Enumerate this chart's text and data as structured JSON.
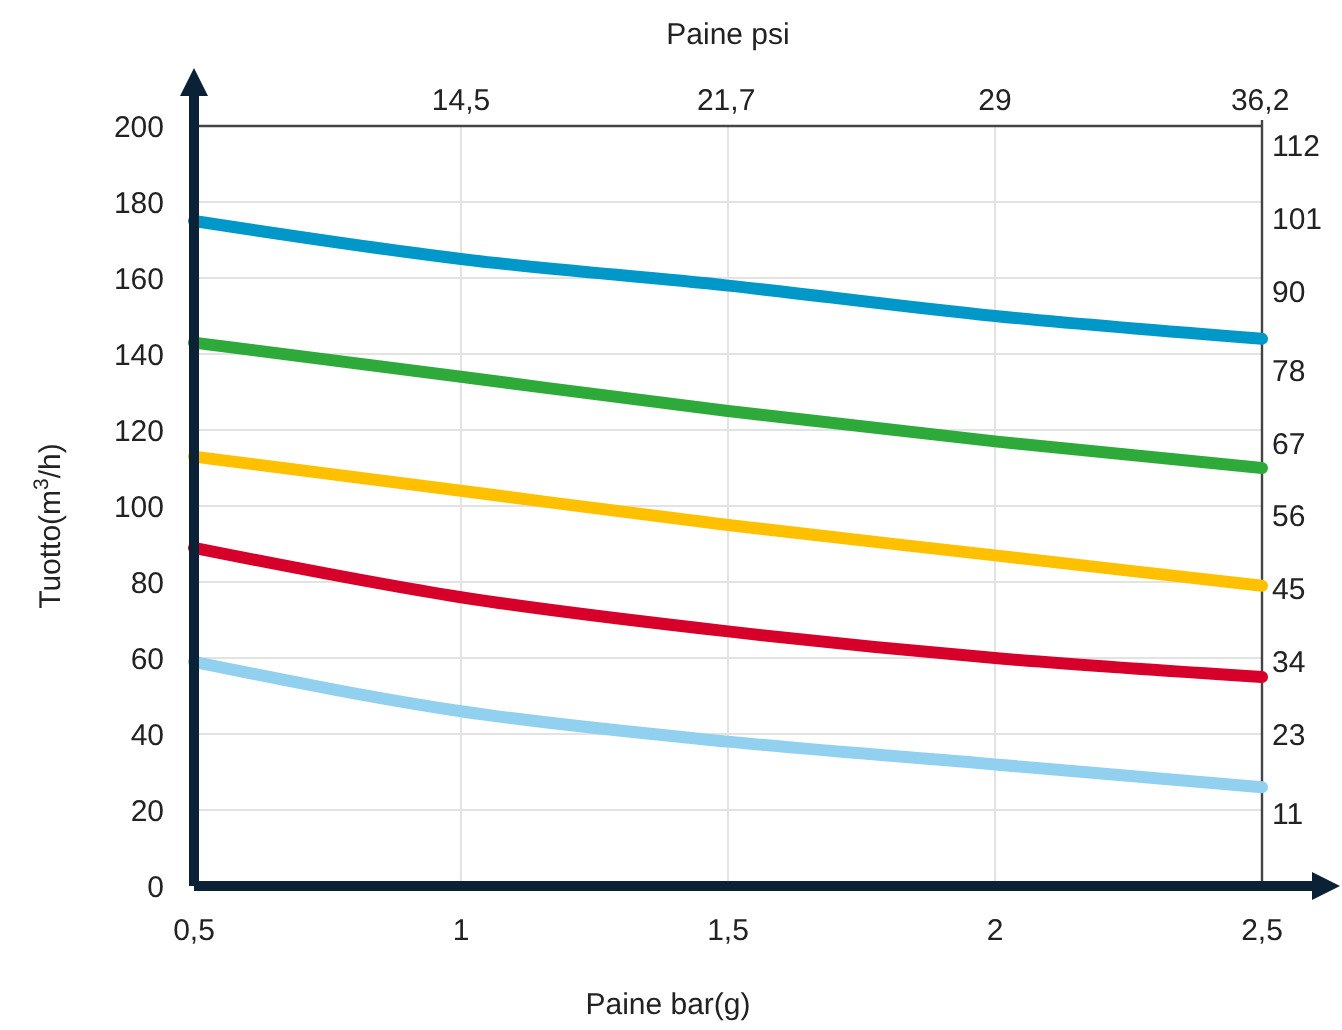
{
  "chart_data": {
    "type": "line",
    "xlabel": "Paine bar(g)",
    "x2label": "Paine psi",
    "ylabel": "Tuotto(m$^{3}$/h)",
    "x": [
      0.5,
      1,
      1.5,
      2,
      2.5
    ],
    "series": [
      {
        "color": "#0098c8",
        "values": [
          175,
          165,
          158,
          150,
          144
        ]
      },
      {
        "color": "#2eaa3a",
        "values": [
          143,
          134,
          125,
          117,
          110
        ]
      },
      {
        "color": "#ffc000",
        "values": [
          113,
          104,
          95,
          87,
          79
        ]
      },
      {
        "color": "#d7002a",
        "values": [
          89,
          76,
          67,
          60,
          55
        ]
      },
      {
        "color": "#92d0f0",
        "values": [
          59,
          46,
          38,
          32,
          26
        ]
      }
    ],
    "xlim": [
      0.5,
      2.5
    ],
    "xticks": [
      {
        "value": 0.5,
        "label": "0,5"
      },
      1,
      {
        "value": 1.5,
        "label": "1,5"
      },
      2,
      {
        "value": 2.5,
        "label": "2,5"
      }
    ],
    "x2lim": [
      7.25,
      36.25
    ],
    "x2ticks": [
      {
        "value": 14.5,
        "label": "14,5"
      },
      {
        "value": 21.7,
        "label": "21,7"
      },
      29,
      {
        "value": 36.2,
        "label": "36,2"
      }
    ],
    "ylim": [
      0,
      200
    ],
    "yticks": [
      0,
      20,
      40,
      60,
      80,
      100,
      120,
      140,
      160,
      180,
      200
    ],
    "y2lim": [
      0,
      115
    ],
    "y2ticks": [
      11,
      23,
      34,
      45,
      56,
      67,
      78,
      90,
      101,
      112
    ],
    "grid": true,
    "line_style": "solid"
  }
}
